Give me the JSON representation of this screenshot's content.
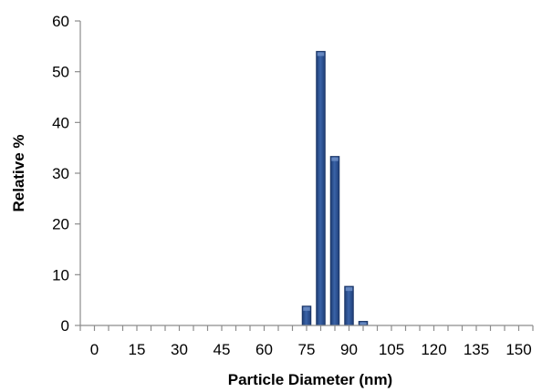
{
  "chart_data": {
    "type": "bar",
    "title": "",
    "xlabel": "Particle Diameter (nm)",
    "ylabel": "Relative %",
    "x_tick_labels": [
      "0",
      "15",
      "30",
      "45",
      "60",
      "75",
      "90",
      "105",
      "120",
      "135",
      "150"
    ],
    "y_tick_labels": [
      "0",
      "10",
      "20",
      "30",
      "40",
      "50",
      "60"
    ],
    "xlim": [
      -5,
      155
    ],
    "ylim": [
      0,
      60
    ],
    "bar_width": 5,
    "series": [
      {
        "x": [
          0,
          5,
          10,
          15,
          20,
          25,
          30,
          35,
          40,
          45,
          50,
          55,
          60,
          65,
          70,
          75,
          80,
          85,
          90,
          95,
          100,
          105,
          110,
          115,
          120,
          125,
          130,
          135,
          140,
          145,
          150
        ],
        "values": [
          0,
          0,
          0,
          0,
          0,
          0,
          0,
          0,
          0,
          0,
          0,
          0,
          0,
          0,
          0,
          3.8,
          54,
          33.3,
          7.7,
          0.8,
          0,
          0,
          0,
          0,
          0,
          0,
          0,
          0,
          0,
          0,
          0
        ]
      }
    ],
    "grid": false,
    "legend": "none",
    "bar_color": "#2b4f8a"
  }
}
